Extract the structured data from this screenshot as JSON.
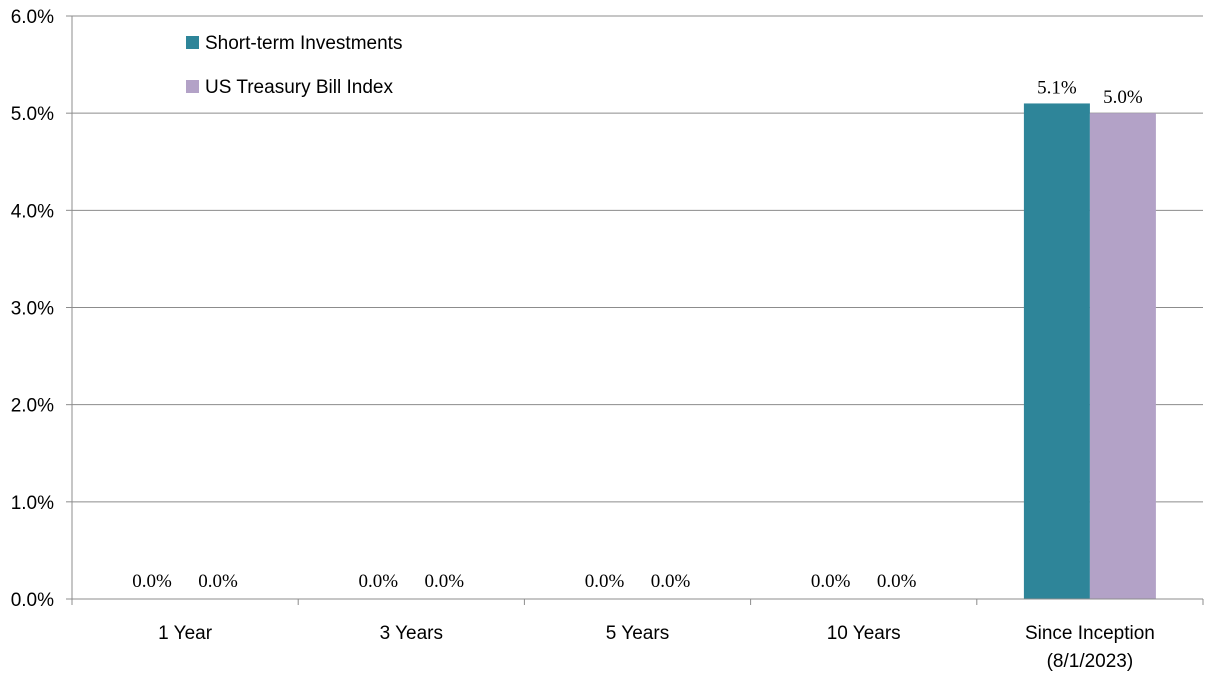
{
  "chart_data": {
    "type": "bar",
    "categories": [
      [
        "1 Year"
      ],
      [
        "3 Years"
      ],
      [
        "5 Years"
      ],
      [
        "10 Years"
      ],
      [
        "Since Inception",
        "(8/1/2023)"
      ]
    ],
    "series": [
      {
        "name": "Short-term Investments",
        "color": "#2e8599",
        "values": [
          0.0,
          0.0,
          0.0,
          0.0,
          5.1
        ],
        "labels": [
          "0.0%",
          "0.0%",
          "0.0%",
          "0.0%",
          "5.1%"
        ]
      },
      {
        "name": "US Treasury Bill Index",
        "color": "#b3a2c7",
        "values": [
          0.0,
          0.0,
          0.0,
          0.0,
          5.0
        ],
        "labels": [
          "0.0%",
          "0.0%",
          "0.0%",
          "0.0%",
          "5.0%"
        ]
      }
    ],
    "y_ticks": [
      "0.0%",
      "1.0%",
      "2.0%",
      "3.0%",
      "4.0%",
      "5.0%",
      "6.0%"
    ],
    "ylim": [
      0,
      6
    ],
    "grid": true,
    "legend_position": "top-left"
  }
}
